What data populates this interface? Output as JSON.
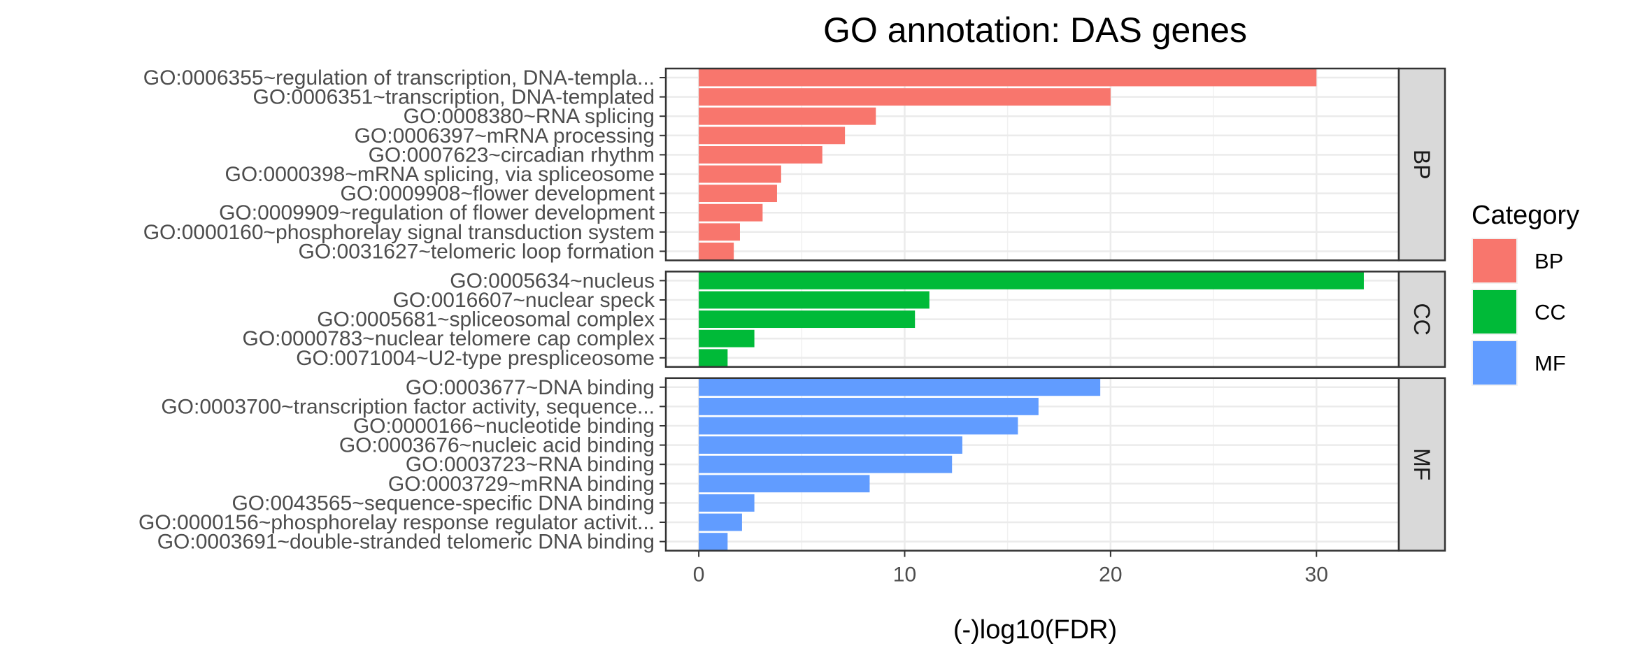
{
  "chart_data": {
    "type": "bar",
    "orientation": "horizontal",
    "title": "GO annotation: DAS genes",
    "xlabel": "(-)log10(FDR)",
    "ylabel": "",
    "xlim": [
      -1.6,
      34.0
    ],
    "x_ticks": [
      0,
      10,
      20,
      30
    ],
    "grid": true,
    "legend": {
      "title": "Category",
      "position": "right",
      "entries": [
        {
          "label": "BP",
          "color": "#F8766D"
        },
        {
          "label": "CC",
          "color": "#00BA38"
        },
        {
          "label": "MF",
          "color": "#619CFF"
        }
      ]
    },
    "facets": [
      {
        "name": "BP",
        "color": "#F8766D",
        "categories": [
          "GO:0006355~regulation of transcription, DNA-templa...",
          "GO:0006351~transcription, DNA-templated",
          "GO:0008380~RNA splicing",
          "GO:0006397~mRNA processing",
          "GO:0007623~circadian rhythm",
          "GO:0000398~mRNA splicing, via spliceosome",
          "GO:0009908~flower development",
          "GO:0009909~regulation of flower development",
          "GO:0000160~phosphorelay signal transduction system",
          "GO:0031627~telomeric loop formation"
        ],
        "values": [
          30.0,
          20.0,
          8.6,
          7.1,
          6.0,
          4.0,
          3.8,
          3.1,
          2.0,
          1.7
        ]
      },
      {
        "name": "CC",
        "color": "#00BA38",
        "categories": [
          "GO:0005634~nucleus",
          "GO:0016607~nuclear speck",
          "GO:0005681~spliceosomal complex",
          "GO:0000783~nuclear telomere cap complex",
          "GO:0071004~U2-type prespliceosome"
        ],
        "values": [
          32.3,
          11.2,
          10.5,
          2.7,
          1.4
        ]
      },
      {
        "name": "MF",
        "color": "#619CFF",
        "categories": [
          "GO:0003677~DNA binding",
          "GO:0003700~transcription factor activity, sequence...",
          "GO:0000166~nucleotide binding",
          "GO:0003676~nucleic acid binding",
          "GO:0003723~RNA binding",
          "GO:0003729~mRNA binding",
          "GO:0043565~sequence-specific DNA binding",
          "GO:0000156~phosphorelay response regulator activit...",
          "GO:0003691~double-stranded telomeric DNA binding"
        ],
        "values": [
          19.5,
          16.5,
          15.5,
          12.8,
          12.3,
          8.3,
          2.7,
          2.1,
          1.4
        ]
      }
    ]
  }
}
